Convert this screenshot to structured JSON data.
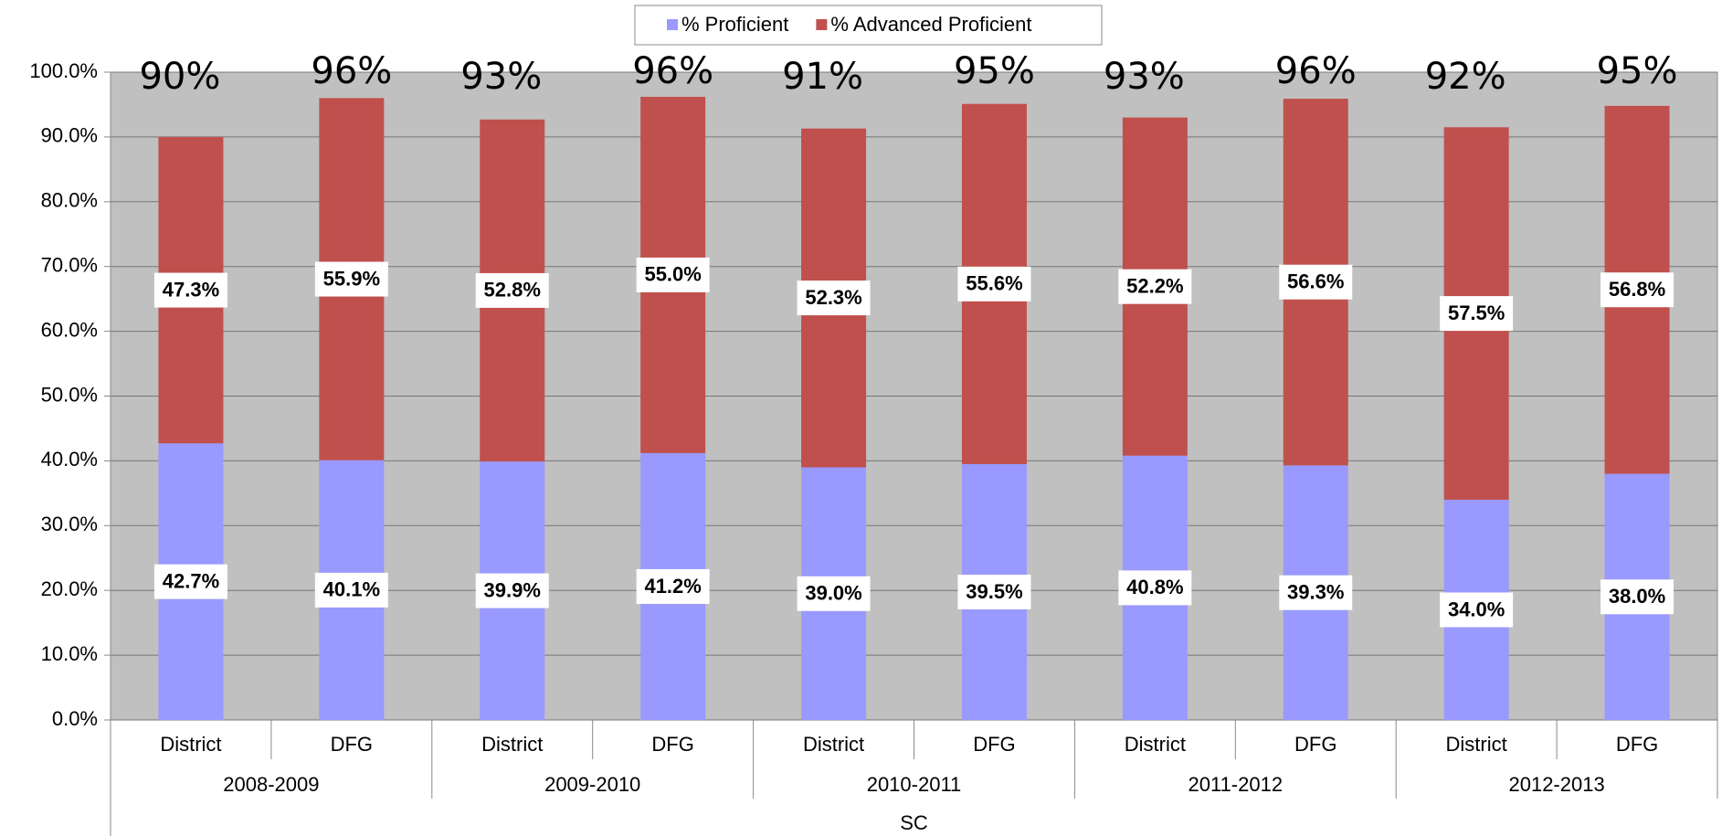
{
  "chart_data": {
    "type": "stacked_bar",
    "categories": [
      "District",
      "DFG",
      "District",
      "DFG",
      "District",
      "DFG",
      "District",
      "DFG",
      "District",
      "DFG"
    ],
    "groups": [
      "2008-2009",
      "2009-2010",
      "2010-2011",
      "2011-2012",
      "2012-2013"
    ],
    "super_category": "SC",
    "series": [
      {
        "name": "% Proficient",
        "color": "#9999ff",
        "values": [
          42.7,
          40.1,
          39.9,
          41.2,
          39.0,
          39.5,
          40.8,
          39.3,
          34.0,
          38.0
        ],
        "value_labels": [
          "42.7%",
          "40.1%",
          "39.9%",
          "41.2%",
          "39.0%",
          "39.5%",
          "40.8%",
          "39.3%",
          "34.0%",
          "38.0%"
        ]
      },
      {
        "name": "% Advanced Proficient",
        "color": "#c0504d",
        "values": [
          47.3,
          55.9,
          52.8,
          55.0,
          52.3,
          55.6,
          52.2,
          56.6,
          57.5,
          56.8
        ],
        "value_labels": [
          "47.3%",
          "55.9%",
          "52.8%",
          "55.0%",
          "52.3%",
          "55.6%",
          "52.2%",
          "56.6%",
          "57.5%",
          "56.8%"
        ]
      }
    ],
    "annotations": [
      "90%",
      "96%",
      "93%",
      "96%",
      "91%",
      "95%",
      "93%",
      "96%",
      "92%",
      "95%"
    ],
    "ylim": [
      0,
      100
    ],
    "yticks": [
      {
        "value": 0,
        "label": "0.0%"
      },
      {
        "value": 10,
        "label": "10.0%"
      },
      {
        "value": 20,
        "label": "20.0%"
      },
      {
        "value": 30,
        "label": "30.0%"
      },
      {
        "value": 40,
        "label": "40.0%"
      },
      {
        "value": 50,
        "label": "50.0%"
      },
      {
        "value": 60,
        "label": "60.0%"
      },
      {
        "value": 70,
        "label": "70.0%"
      },
      {
        "value": 80,
        "label": "80.0%"
      },
      {
        "value": 90,
        "label": "90.0%"
      },
      {
        "value": 100,
        "label": "100.0%"
      }
    ],
    "grid": true,
    "legend": "top",
    "plot_background": "#c0c0c0"
  }
}
